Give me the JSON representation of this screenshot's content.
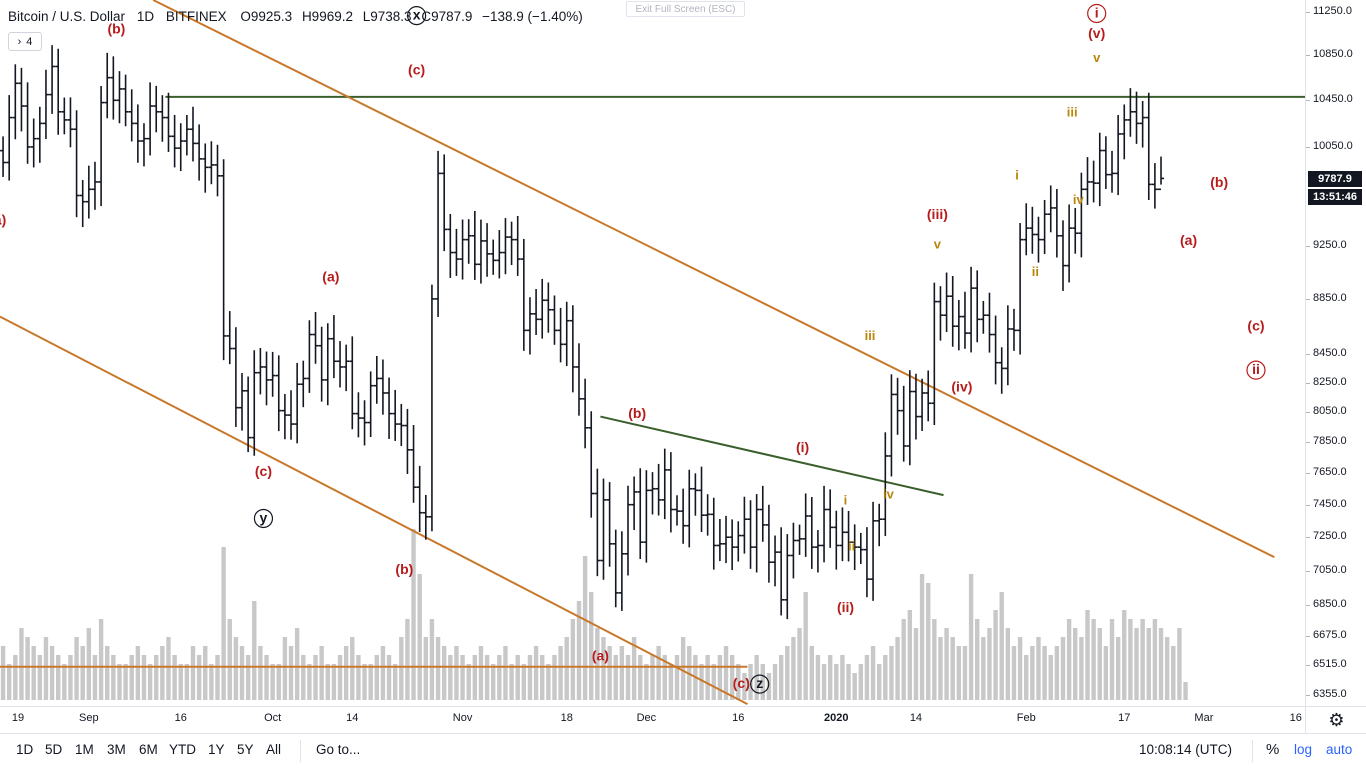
{
  "header": {
    "title": "Bitcoin / U.S. Dollar",
    "interval": "1D",
    "exchange": "BITFINEX",
    "open": "O9925.3",
    "high": "H9969.2",
    "low": "L9738.3",
    "close": "C9787.9",
    "change": "−138.9 (−1.40%)"
  },
  "collapse_button": {
    "icon": "chevron-right-icon",
    "count": "4"
  },
  "fullscreen_button": "Exit Full Screen (ESC)",
  "price_axis": {
    "ticks": [
      "11250.0",
      "10850.0",
      "10450.0",
      "10050.0",
      "9250.0",
      "8850.0",
      "8450.0",
      "8250.0",
      "8050.0",
      "7850.0",
      "7650.0",
      "7450.0",
      "7250.0",
      "7050.0",
      "6850.0",
      "6675.0",
      "6515.0",
      "6355.0"
    ],
    "last_price": "9787.9",
    "countdown": "13:51:46"
  },
  "time_axis": {
    "labels": [
      {
        "text": "19",
        "bold": false
      },
      {
        "text": "Sep",
        "bold": false
      },
      {
        "text": "16",
        "bold": false
      },
      {
        "text": "Oct",
        "bold": false
      },
      {
        "text": "14",
        "bold": false
      },
      {
        "text": "Nov",
        "bold": false
      },
      {
        "text": "18",
        "bold": false
      },
      {
        "text": "Dec",
        "bold": false
      },
      {
        "text": "16",
        "bold": false
      },
      {
        "text": "2020",
        "bold": true
      },
      {
        "text": "14",
        "bold": false
      },
      {
        "text": "Feb",
        "bold": false
      },
      {
        "text": "17",
        "bold": false
      },
      {
        "text": "Mar",
        "bold": false
      },
      {
        "text": "16",
        "bold": false
      }
    ]
  },
  "bottom_bar": {
    "ranges": [
      "1D",
      "5D",
      "1M",
      "3M",
      "6M",
      "YTD",
      "1Y",
      "5Y",
      "All"
    ],
    "goto": "Go to...",
    "clock": "10:08:14 (UTC)",
    "percent": "%",
    "log": "log",
    "auto": "auto",
    "settings_icon": "gear-icon"
  },
  "colors": {
    "bars": "#131722",
    "volume": "#c8c8c8",
    "channel": "#c8782a",
    "resistance": "#3a5f2c",
    "wave_red": "#b71c1c",
    "wave_gold": "#b8860b"
  },
  "chart_data": {
    "type": "ohlc",
    "title": "Bitcoin / U.S. Dollar",
    "x_range": [
      "2019-08-18",
      "2020-03-18"
    ],
    "y_range": [
      6295,
      11365
    ],
    "log_scale": true,
    "grid": false,
    "price_series": {
      "name": "BTCUSD",
      "closes": [
        9920,
        10300,
        10600,
        10400,
        10050,
        10120,
        10250,
        10500,
        10750,
        10350,
        10280,
        10200,
        9650,
        9600,
        9700,
        9760,
        10430,
        10650,
        10450,
        10550,
        10350,
        10250,
        10100,
        10120,
        10400,
        10350,
        10300,
        10140,
        10040,
        10100,
        10200,
        10080,
        9950,
        9880,
        9900,
        9810,
        8580,
        8490,
        8080,
        8195,
        7880,
        8320,
        8360,
        8270,
        8300,
        8060,
        8030,
        7970,
        8240,
        8280,
        8590,
        8510,
        8270,
        8560,
        8400,
        8360,
        8400,
        8040,
        8010,
        7980,
        8230,
        8280,
        8180,
        8040,
        7970,
        7960,
        7800,
        7560,
        7400,
        7375,
        8850,
        9830,
        9380,
        9200,
        9150,
        9300,
        9330,
        9110,
        9290,
        9190,
        9140,
        9200,
        9320,
        9300,
        9150,
        8620,
        8740,
        8700,
        8840,
        8770,
        8620,
        8520,
        8690,
        8360,
        8140,
        7945,
        7520,
        7110,
        7480,
        7210,
        6920,
        7150,
        7450,
        7530,
        7220,
        7540,
        7550,
        7480,
        7670,
        7420,
        7410,
        7320,
        7550,
        7540,
        7385,
        7390,
        7200,
        7210,
        7250,
        7190,
        7260,
        7360,
        7190,
        7420,
        7325,
        7100,
        7160,
        6880,
        7140,
        7230,
        7240,
        7380,
        7190,
        7200,
        7420,
        7310,
        7200,
        7280,
        7220,
        7190,
        7175,
        7000,
        7350,
        7360,
        7760,
        8170,
        8060,
        7825,
        8190,
        8020,
        8180,
        8110,
        8830,
        8730,
        8870,
        8650,
        8720,
        8600,
        8930,
        8700,
        8730,
        8590,
        8390,
        8350,
        8630,
        8620,
        9300,
        9390,
        9340,
        9300,
        9500,
        9550,
        9330,
        9100,
        9390,
        9350,
        9700,
        9760,
        9750,
        10020,
        9820,
        9830,
        10160,
        10280,
        10350,
        10250,
        10300,
        9740,
        9700,
        9789
      ],
      "ohlc_sample": {
        "open": 9925.3,
        "high": 9969.2,
        "low": 9738.3,
        "close": 9787.9
      }
    },
    "volume": {
      "name": "Volume",
      "relative_values": [
        0.3,
        0.2,
        0.25,
        0.4,
        0.35,
        0.3,
        0.25,
        0.35,
        0.3,
        0.25,
        0.2,
        0.25,
        0.35,
        0.3,
        0.4,
        0.25,
        0.45,
        0.3,
        0.25,
        0.2,
        0.2,
        0.25,
        0.3,
        0.25,
        0.2,
        0.25,
        0.3,
        0.35,
        0.25,
        0.2,
        0.2,
        0.3,
        0.25,
        0.3,
        0.2,
        0.25,
        0.85,
        0.45,
        0.35,
        0.3,
        0.25,
        0.55,
        0.3,
        0.25,
        0.2,
        0.2,
        0.35,
        0.3,
        0.4,
        0.25,
        0.2,
        0.25,
        0.3,
        0.2,
        0.2,
        0.25,
        0.3,
        0.35,
        0.25,
        0.2,
        0.2,
        0.25,
        0.3,
        0.25,
        0.2,
        0.35,
        0.45,
        0.95,
        0.7,
        0.35,
        0.45,
        0.35,
        0.3,
        0.25,
        0.3,
        0.25,
        0.2,
        0.25,
        0.3,
        0.25,
        0.2,
        0.25,
        0.3,
        0.2,
        0.25,
        0.2,
        0.25,
        0.3,
        0.25,
        0.2,
        0.25,
        0.3,
        0.35,
        0.45,
        0.55,
        0.8,
        0.6,
        0.4,
        0.35,
        0.3,
        0.25,
        0.3,
        0.25,
        0.35,
        0.25,
        0.2,
        0.25,
        0.3,
        0.25,
        0.2,
        0.25,
        0.35,
        0.3,
        0.25,
        0.2,
        0.25,
        0.2,
        0.25,
        0.3,
        0.25,
        0.2,
        0.15,
        0.2,
        0.25,
        0.2,
        0.15,
        0.2,
        0.25,
        0.3,
        0.35,
        0.4,
        0.6,
        0.3,
        0.25,
        0.2,
        0.25,
        0.2,
        0.25,
        0.2,
        0.15,
        0.2,
        0.25,
        0.3,
        0.2,
        0.25,
        0.3,
        0.35,
        0.45,
        0.5,
        0.4,
        0.7,
        0.65,
        0.45,
        0.35,
        0.4,
        0.35,
        0.3,
        0.3,
        0.7,
        0.45,
        0.35,
        0.4,
        0.5,
        0.6,
        0.4,
        0.3,
        0.35,
        0.25,
        0.3,
        0.35,
        0.3,
        0.25,
        0.3,
        0.35,
        0.45,
        0.4,
        0.35,
        0.5,
        0.45,
        0.4,
        0.3,
        0.45,
        0.35,
        0.5,
        0.45,
        0.4,
        0.45,
        0.4,
        0.45,
        0.4,
        0.35,
        0.3,
        0.4,
        0.1
      ]
    },
    "trendlines": [
      {
        "name": "resistance",
        "color": "#3a5f2c",
        "points": [
          [
            "2019-09-14",
            10480
          ],
          [
            "2020-03-18",
            10480
          ]
        ]
      },
      {
        "name": "channel-upper",
        "color": "#c8782a",
        "points": [
          [
            "2019-09-12",
            11365
          ],
          [
            "2020-03-13",
            7130
          ]
        ]
      },
      {
        "name": "channel-lower",
        "color": "#c8782a",
        "points": [
          [
            "2019-08-18",
            8720
          ],
          [
            "2019-12-18",
            6305
          ]
        ]
      },
      {
        "name": "support",
        "color": "#c8782a",
        "points": [
          [
            "2019-08-18",
            6505
          ],
          [
            "2019-12-18",
            6505
          ]
        ]
      },
      {
        "name": "triangle-top",
        "color": "#3a5f2c",
        "points": [
          [
            "2019-11-24",
            8020
          ],
          [
            "2020-01-19",
            7510
          ]
        ]
      }
    ],
    "annotations": [
      {
        "text": "(b)",
        "date": "2019-09-06",
        "price": 11050,
        "color": "red"
      },
      {
        "text": "a)",
        "date": "2019-08-18",
        "price": 9420,
        "color": "red"
      },
      {
        "text": "x",
        "circled": true,
        "date": "2019-10-25",
        "price": 11180,
        "color": "dark"
      },
      {
        "text": "(c)",
        "date": "2019-10-25",
        "price": 10680,
        "color": "red"
      },
      {
        "text": "(a)",
        "date": "2019-10-11",
        "price": 8980,
        "color": "red"
      },
      {
        "text": "(c)",
        "date": "2019-09-30",
        "price": 7630,
        "color": "red"
      },
      {
        "text": "y",
        "circled": true,
        "date": "2019-09-30",
        "price": 7340,
        "color": "dark"
      },
      {
        "text": "(b)",
        "date": "2019-10-23",
        "price": 7030,
        "color": "red"
      },
      {
        "text": "(b)",
        "date": "2019-11-30",
        "price": 8010,
        "color": "red"
      },
      {
        "text": "(a)",
        "date": "2019-11-24",
        "price": 6540,
        "color": "red"
      },
      {
        "text": "(i)",
        "date": "2019-12-27",
        "price": 7785,
        "color": "red"
      },
      {
        "text": "(c)",
        "date": "2019-12-17",
        "price": 6390,
        "color": "red"
      },
      {
        "text": "z",
        "circled": true,
        "date": "2019-12-20",
        "price": 6390,
        "color": "dark"
      },
      {
        "text": "(ii)",
        "date": "2020-01-03",
        "price": 6810,
        "color": "red"
      },
      {
        "text": "i",
        "date": "2020-01-03",
        "price": 7450,
        "color": "gold"
      },
      {
        "text": "ii",
        "date": "2020-01-04",
        "price": 7170,
        "color": "gold"
      },
      {
        "text": "iii",
        "date": "2020-01-07",
        "price": 8550,
        "color": "gold"
      },
      {
        "text": "iv",
        "date": "2020-01-10",
        "price": 7490,
        "color": "gold"
      },
      {
        "text": "(iii)",
        "date": "2020-01-18",
        "price": 9460,
        "color": "red"
      },
      {
        "text": "v",
        "date": "2020-01-18",
        "price": 9230,
        "color": "gold"
      },
      {
        "text": "(iv)",
        "date": "2020-01-22",
        "price": 8190,
        "color": "red"
      },
      {
        "text": "i",
        "date": "2020-01-31",
        "price": 9780,
        "color": "gold"
      },
      {
        "text": "ii",
        "date": "2020-02-03",
        "price": 9020,
        "color": "gold"
      },
      {
        "text": "iii",
        "date": "2020-02-09",
        "price": 10310,
        "color": "gold"
      },
      {
        "text": "iv",
        "date": "2020-02-10",
        "price": 9580,
        "color": "gold"
      },
      {
        "text": "v",
        "date": "2020-02-13",
        "price": 10790,
        "color": "gold"
      },
      {
        "text": "(v)",
        "date": "2020-02-13",
        "price": 11010,
        "color": "red"
      },
      {
        "text": "i",
        "circled": true,
        "date": "2020-02-13",
        "price": 11200,
        "color": "red"
      },
      {
        "text": "(b)",
        "date": "2020-03-04",
        "price": 9720,
        "color": "red"
      },
      {
        "text": "(a)",
        "date": "2020-02-28",
        "price": 9260,
        "color": "red"
      },
      {
        "text": "(c)",
        "date": "2020-03-10",
        "price": 8620,
        "color": "red"
      },
      {
        "text": "ii",
        "circled": true,
        "date": "2020-03-10",
        "price": 8310,
        "color": "red"
      }
    ]
  }
}
